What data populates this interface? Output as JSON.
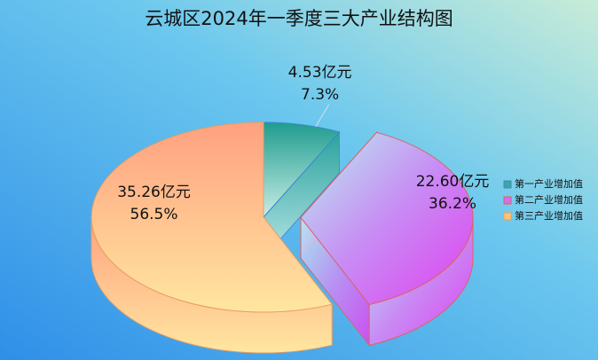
{
  "chart_data": {
    "type": "pie3d",
    "title": "云城区2024年一季度三大产业结构图",
    "categories": [
      "第一产业增加值",
      "第二产业增加值",
      "第三产业增加值"
    ],
    "values": [
      4.53,
      22.6,
      35.26
    ],
    "value_labels": [
      "4.53亿元",
      "22.60亿元",
      "35.26亿元"
    ],
    "percentages": [
      7.3,
      36.2,
      56.5
    ],
    "percentage_labels": [
      "7.3%",
      "36.2%",
      "56.5%"
    ],
    "colors": [
      "#3aa89c",
      "#d070f0",
      "#ffc27a"
    ],
    "exploded": [
      false,
      true,
      false
    ],
    "legend": "right"
  }
}
